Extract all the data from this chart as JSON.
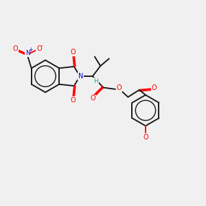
{
  "bg_color": "#f0f0f0",
  "bond_color": "#1a1a1a",
  "bond_width": 1.4,
  "atom_colors": {
    "O": "#ff0000",
    "N": "#0000cc",
    "C": "#1a1a1a",
    "H": "#2aa0a0"
  },
  "figsize": [
    3.0,
    3.0
  ],
  "dpi": 100,
  "xlim": [
    0,
    10
  ],
  "ylim": [
    0,
    10
  ]
}
